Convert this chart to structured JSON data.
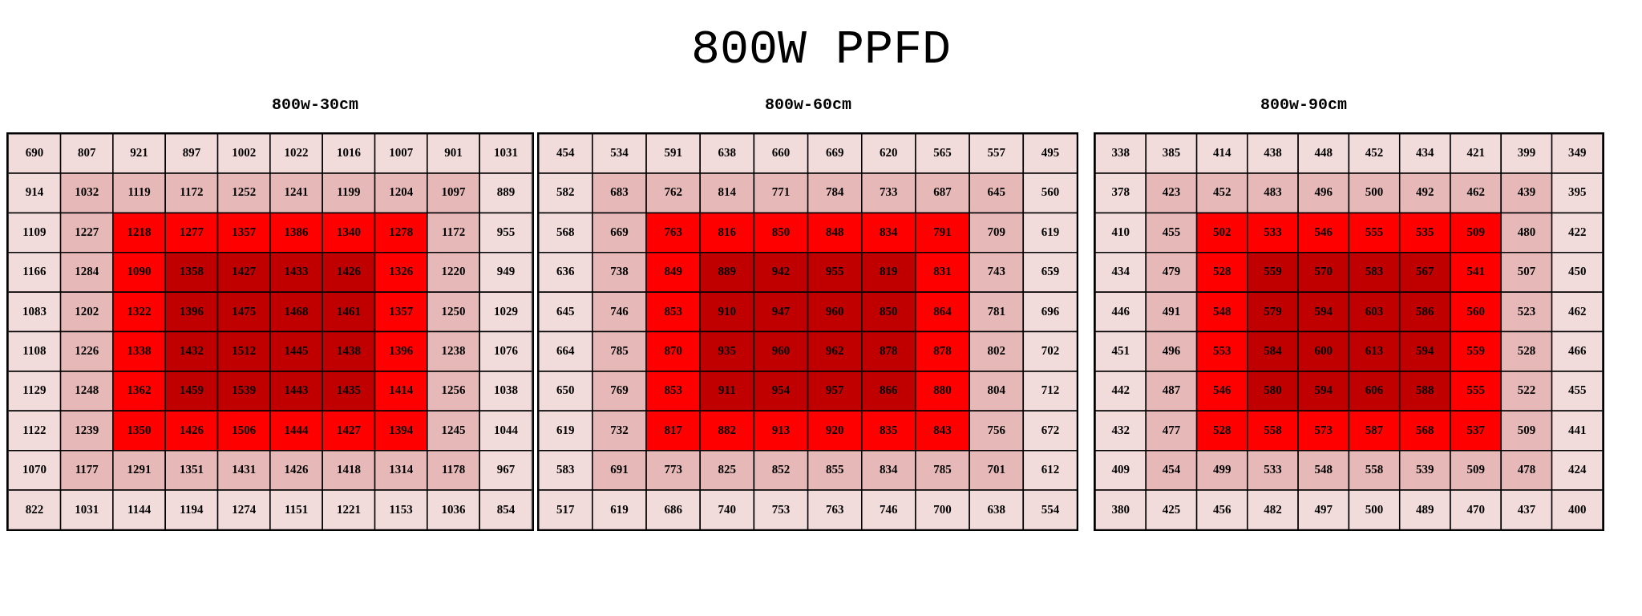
{
  "chart_data": [
    {
      "type": "heatmap",
      "title": "800w-30cm",
      "annotations": [
        "800W PPFD"
      ],
      "data_labels": true,
      "categories": [
        null,
        null,
        null,
        null,
        null,
        null,
        null,
        null,
        null,
        null
      ],
      "y_categories": [
        null,
        null,
        null,
        null,
        null,
        null,
        null,
        null,
        null,
        null
      ],
      "cells": [
        [
          690,
          807,
          921,
          897,
          1002,
          1022,
          1016,
          1007,
          901,
          1031
        ],
        [
          914,
          1032,
          1119,
          1172,
          1252,
          1241,
          1199,
          1204,
          1097,
          889
        ],
        [
          1109,
          1227,
          1218,
          1277,
          1357,
          1386,
          1340,
          1278,
          1172,
          955
        ],
        [
          1166,
          1284,
          1090,
          1358,
          1427,
          1433,
          1426,
          1326,
          1220,
          949
        ],
        [
          1083,
          1202,
          1322,
          1396,
          1475,
          1468,
          1461,
          1357,
          1250,
          1029
        ],
        [
          1108,
          1226,
          1338,
          1432,
          1512,
          1445,
          1438,
          1396,
          1238,
          1076
        ],
        [
          1129,
          1248,
          1362,
          1459,
          1539,
          1443,
          1435,
          1414,
          1256,
          1038
        ],
        [
          1122,
          1239,
          1350,
          1426,
          1506,
          1444,
          1427,
          1394,
          1245,
          1044
        ],
        [
          1070,
          1177,
          1291,
          1351,
          1431,
          1426,
          1418,
          1314,
          1178,
          967
        ],
        [
          822,
          1031,
          1144,
          1194,
          1274,
          1151,
          1221,
          1153,
          1036,
          854
        ]
      ],
      "colors": [
        [
          "#f2dcdb",
          "#f2dcdb",
          "#f2dcdb",
          "#f2dcdb",
          "#f2dcdb",
          "#f2dcdb",
          "#f2dcdb",
          "#f2dcdb",
          "#f2dcdb",
          "#f2dcdb"
        ],
        [
          "#f2dcdb",
          "#e6b9b8",
          "#e6b9b8",
          "#e6b9b8",
          "#e6b9b8",
          "#e6b9b8",
          "#e6b9b8",
          "#e6b9b8",
          "#e6b9b8",
          "#f2dcdb"
        ],
        [
          "#f2dcdb",
          "#e6b9b8",
          "#ff0000",
          "#ff0000",
          "#ff0000",
          "#ff0000",
          "#ff0000",
          "#ff0000",
          "#e6b9b8",
          "#f2dcdb"
        ],
        [
          "#f2dcdb",
          "#e6b9b8",
          "#ff0000",
          "#c00000",
          "#c00000",
          "#c00000",
          "#c00000",
          "#ff0000",
          "#e6b9b8",
          "#f2dcdb"
        ],
        [
          "#f2dcdb",
          "#e6b9b8",
          "#ff0000",
          "#c00000",
          "#c00000",
          "#c00000",
          "#c00000",
          "#ff0000",
          "#e6b9b8",
          "#f2dcdb"
        ],
        [
          "#f2dcdb",
          "#e6b9b8",
          "#ff0000",
          "#c00000",
          "#c00000",
          "#c00000",
          "#c00000",
          "#ff0000",
          "#e6b9b8",
          "#f2dcdb"
        ],
        [
          "#f2dcdb",
          "#e6b9b8",
          "#ff0000",
          "#c00000",
          "#c00000",
          "#c00000",
          "#c00000",
          "#ff0000",
          "#e6b9b8",
          "#f2dcdb"
        ],
        [
          "#f2dcdb",
          "#e6b9b8",
          "#ff0000",
          "#ff0000",
          "#ff0000",
          "#ff0000",
          "#ff0000",
          "#ff0000",
          "#e6b9b8",
          "#f2dcdb"
        ],
        [
          "#f2dcdb",
          "#e6b9b8",
          "#e6b9b8",
          "#e6b9b8",
          "#e6b9b8",
          "#e6b9b8",
          "#e6b9b8",
          "#e6b9b8",
          "#e6b9b8",
          "#f2dcdb"
        ],
        [
          "#f2dcdb",
          "#f2dcdb",
          "#f2dcdb",
          "#f2dcdb",
          "#f2dcdb",
          "#f2dcdb",
          "#f2dcdb",
          "#f2dcdb",
          "#f2dcdb",
          "#f2dcdb"
        ]
      ]
    },
    {
      "type": "heatmap",
      "title": "800w-60cm",
      "data_labels": true,
      "categories": [
        null,
        null,
        null,
        null,
        null,
        null,
        null,
        null,
        null,
        null
      ],
      "y_categories": [
        null,
        null,
        null,
        null,
        null,
        null,
        null,
        null,
        null,
        null
      ],
      "cells": [
        [
          454,
          534,
          591,
          638,
          660,
          669,
          620,
          565,
          557,
          495
        ],
        [
          582,
          683,
          762,
          814,
          771,
          784,
          733,
          687,
          645,
          560
        ],
        [
          568,
          669,
          763,
          816,
          850,
          848,
          834,
          791,
          709,
          619
        ],
        [
          636,
          738,
          849,
          889,
          942,
          955,
          819,
          831,
          743,
          659
        ],
        [
          645,
          746,
          853,
          910,
          947,
          960,
          850,
          864,
          781,
          696
        ],
        [
          664,
          785,
          870,
          935,
          960,
          962,
          878,
          878,
          802,
          702
        ],
        [
          650,
          769,
          853,
          911,
          954,
          957,
          866,
          880,
          804,
          712
        ],
        [
          619,
          732,
          817,
          882,
          913,
          920,
          835,
          843,
          756,
          672
        ],
        [
          583,
          691,
          773,
          825,
          852,
          855,
          834,
          785,
          701,
          612
        ],
        [
          517,
          619,
          686,
          740,
          753,
          763,
          746,
          700,
          638,
          554
        ]
      ],
      "colors": [
        [
          "#f2dcdb",
          "#f2dcdb",
          "#f2dcdb",
          "#f2dcdb",
          "#f2dcdb",
          "#f2dcdb",
          "#f2dcdb",
          "#f2dcdb",
          "#f2dcdb",
          "#f2dcdb"
        ],
        [
          "#f2dcdb",
          "#e6b9b8",
          "#e6b9b8",
          "#e6b9b8",
          "#e6b9b8",
          "#e6b9b8",
          "#e6b9b8",
          "#e6b9b8",
          "#e6b9b8",
          "#f2dcdb"
        ],
        [
          "#f2dcdb",
          "#e6b9b8",
          "#ff0000",
          "#ff0000",
          "#ff0000",
          "#ff0000",
          "#ff0000",
          "#ff0000",
          "#e6b9b8",
          "#f2dcdb"
        ],
        [
          "#f2dcdb",
          "#e6b9b8",
          "#ff0000",
          "#c00000",
          "#c00000",
          "#c00000",
          "#c00000",
          "#ff0000",
          "#e6b9b8",
          "#f2dcdb"
        ],
        [
          "#f2dcdb",
          "#e6b9b8",
          "#ff0000",
          "#c00000",
          "#c00000",
          "#c00000",
          "#c00000",
          "#ff0000",
          "#e6b9b8",
          "#f2dcdb"
        ],
        [
          "#f2dcdb",
          "#e6b9b8",
          "#ff0000",
          "#c00000",
          "#c00000",
          "#c00000",
          "#c00000",
          "#ff0000",
          "#e6b9b8",
          "#f2dcdb"
        ],
        [
          "#f2dcdb",
          "#e6b9b8",
          "#ff0000",
          "#c00000",
          "#c00000",
          "#c00000",
          "#c00000",
          "#ff0000",
          "#e6b9b8",
          "#f2dcdb"
        ],
        [
          "#f2dcdb",
          "#e6b9b8",
          "#ff0000",
          "#ff0000",
          "#ff0000",
          "#ff0000",
          "#ff0000",
          "#ff0000",
          "#e6b9b8",
          "#f2dcdb"
        ],
        [
          "#f2dcdb",
          "#e6b9b8",
          "#e6b9b8",
          "#e6b9b8",
          "#e6b9b8",
          "#e6b9b8",
          "#e6b9b8",
          "#e6b9b8",
          "#e6b9b8",
          "#f2dcdb"
        ],
        [
          "#f2dcdb",
          "#f2dcdb",
          "#f2dcdb",
          "#f2dcdb",
          "#f2dcdb",
          "#f2dcdb",
          "#f2dcdb",
          "#f2dcdb",
          "#f2dcdb",
          "#f2dcdb"
        ]
      ]
    },
    {
      "type": "heatmap",
      "title": "800w-90cm",
      "data_labels": true,
      "categories": [
        null,
        null,
        null,
        null,
        null,
        null,
        null,
        null,
        null,
        null
      ],
      "y_categories": [
        null,
        null,
        null,
        null,
        null,
        null,
        null,
        null,
        null,
        null
      ],
      "cells": [
        [
          338,
          385,
          414,
          438,
          448,
          452,
          434,
          421,
          399,
          349
        ],
        [
          378,
          423,
          452,
          483,
          496,
          500,
          492,
          462,
          439,
          395
        ],
        [
          410,
          455,
          502,
          533,
          546,
          555,
          535,
          509,
          480,
          422
        ],
        [
          434,
          479,
          528,
          559,
          570,
          583,
          567,
          541,
          507,
          450
        ],
        [
          446,
          491,
          548,
          579,
          594,
          603,
          586,
          560,
          523,
          462
        ],
        [
          451,
          496,
          553,
          584,
          600,
          613,
          594,
          559,
          528,
          466
        ],
        [
          442,
          487,
          546,
          580,
          594,
          606,
          588,
          555,
          522,
          455
        ],
        [
          432,
          477,
          528,
          558,
          573,
          587,
          568,
          537,
          509,
          441
        ],
        [
          409,
          454,
          499,
          533,
          548,
          558,
          539,
          509,
          478,
          424
        ],
        [
          380,
          425,
          456,
          482,
          497,
          500,
          489,
          470,
          437,
          400
        ]
      ],
      "colors": [
        [
          "#f2dcdb",
          "#f2dcdb",
          "#f2dcdb",
          "#f2dcdb",
          "#f2dcdb",
          "#f2dcdb",
          "#f2dcdb",
          "#f2dcdb",
          "#f2dcdb",
          "#f2dcdb"
        ],
        [
          "#f2dcdb",
          "#e6b9b8",
          "#e6b9b8",
          "#e6b9b8",
          "#e6b9b8",
          "#e6b9b8",
          "#e6b9b8",
          "#e6b9b8",
          "#e6b9b8",
          "#f2dcdb"
        ],
        [
          "#f2dcdb",
          "#e6b9b8",
          "#ff0000",
          "#ff0000",
          "#ff0000",
          "#ff0000",
          "#ff0000",
          "#ff0000",
          "#e6b9b8",
          "#f2dcdb"
        ],
        [
          "#f2dcdb",
          "#e6b9b8",
          "#ff0000",
          "#c00000",
          "#c00000",
          "#c00000",
          "#c00000",
          "#ff0000",
          "#e6b9b8",
          "#f2dcdb"
        ],
        [
          "#f2dcdb",
          "#e6b9b8",
          "#ff0000",
          "#c00000",
          "#c00000",
          "#c00000",
          "#c00000",
          "#ff0000",
          "#e6b9b8",
          "#f2dcdb"
        ],
        [
          "#f2dcdb",
          "#e6b9b8",
          "#ff0000",
          "#c00000",
          "#c00000",
          "#c00000",
          "#c00000",
          "#ff0000",
          "#e6b9b8",
          "#f2dcdb"
        ],
        [
          "#f2dcdb",
          "#e6b9b8",
          "#ff0000",
          "#c00000",
          "#c00000",
          "#c00000",
          "#c00000",
          "#ff0000",
          "#e6b9b8",
          "#f2dcdb"
        ],
        [
          "#f2dcdb",
          "#e6b9b8",
          "#ff0000",
          "#ff0000",
          "#ff0000",
          "#ff0000",
          "#ff0000",
          "#ff0000",
          "#e6b9b8",
          "#f2dcdb"
        ],
        [
          "#f2dcdb",
          "#e6b9b8",
          "#e6b9b8",
          "#e6b9b8",
          "#e6b9b8",
          "#e6b9b8",
          "#e6b9b8",
          "#e6b9b8",
          "#e6b9b8",
          "#f2dcdb"
        ],
        [
          "#f2dcdb",
          "#f2dcdb",
          "#f2dcdb",
          "#f2dcdb",
          "#f2dcdb",
          "#f2dcdb",
          "#f2dcdb",
          "#f2dcdb",
          "#f2dcdb",
          "#f2dcdb"
        ]
      ]
    }
  ]
}
